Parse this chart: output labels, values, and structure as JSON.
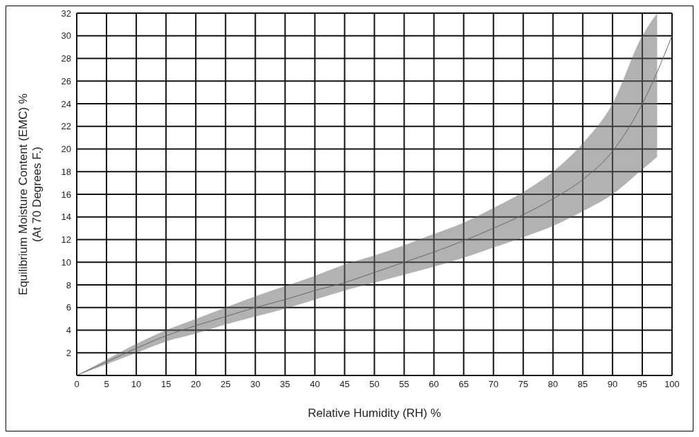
{
  "chart_data": {
    "type": "line",
    "xlabel": "Relative Humidity (RH) %",
    "ylabel": "Equilibrium Moisture Content (EMC) %\n(At 70 Degrees F.)",
    "x": [
      0,
      5,
      10,
      15,
      20,
      25,
      30,
      35,
      40,
      45,
      50,
      55,
      60,
      65,
      70,
      75,
      80,
      85,
      90,
      95,
      97.5,
      100
    ],
    "series": [
      {
        "color": "#666666",
        "values": [
          0,
          1.2,
          2.4,
          3.5,
          4.4,
          5.2,
          6.0,
          6.7,
          7.5,
          8.2,
          9.1,
          10.0,
          10.9,
          11.9,
          13.0,
          14.2,
          15.6,
          17.3,
          19.8,
          24,
          26.8,
          30
        ],
        "lower": [
          0,
          1.0,
          2.0,
          3.0,
          3.7,
          4.5,
          5.2,
          5.9,
          6.7,
          7.5,
          8.2,
          8.9,
          9.6,
          10.4,
          11.3,
          12.2,
          13.2,
          14.5,
          16,
          18.2,
          19.3,
          null
        ],
        "upper": [
          0,
          1.4,
          2.8,
          4.0,
          5.0,
          6.0,
          7.0,
          7.9,
          8.8,
          9.8,
          10.6,
          11.5,
          12.5,
          13.5,
          14.8,
          16.2,
          18,
          20.5,
          24,
          30,
          32,
          null
        ]
      }
    ],
    "xlim": [
      0,
      100
    ],
    "xticks": [
      0,
      5,
      10,
      15,
      20,
      25,
      30,
      35,
      40,
      45,
      50,
      55,
      60,
      65,
      70,
      75,
      80,
      85,
      90,
      95,
      100
    ],
    "ylim": [
      0,
      32
    ],
    "yticks": [
      2,
      4,
      6,
      8,
      10,
      12,
      14,
      16,
      18,
      20,
      22,
      24,
      26,
      28,
      30,
      32
    ],
    "grid": true,
    "marker": "none",
    "line_style": "solid"
  }
}
